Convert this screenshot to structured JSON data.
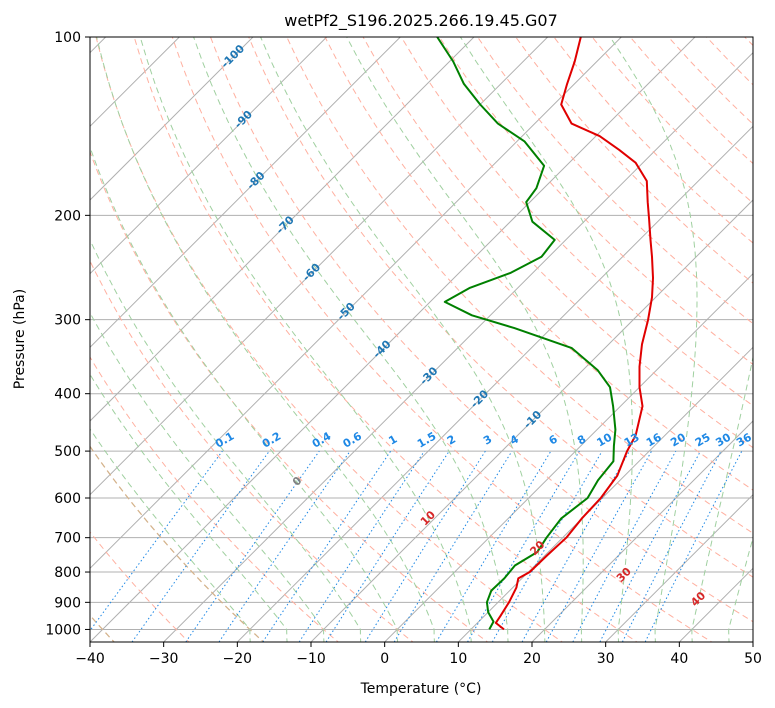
{
  "chart_data": {
    "type": "line",
    "title": "wetPf2_S196.2025.266.19.45.G07",
    "xlabel": "Temperature (°C)",
    "ylabel": "Pressure (hPa)",
    "xlim": [
      -40,
      50
    ],
    "ylim": [
      1050,
      100
    ],
    "y_scale": "log",
    "x_ticks": [
      -40,
      -30,
      -20,
      -10,
      0,
      10,
      20,
      30,
      40,
      50
    ],
    "x_tick_labels": [
      "−40",
      "−30",
      "−20",
      "−10",
      "0",
      "10",
      "20",
      "30",
      "40",
      "50"
    ],
    "y_ticks": [
      100,
      200,
      300,
      400,
      500,
      600,
      700,
      800,
      900,
      1000
    ],
    "y_tick_labels": [
      "100",
      "200",
      "300",
      "400",
      "500",
      "600",
      "700",
      "800",
      "900",
      "1000"
    ],
    "grid": true,
    "skew_deg": 45,
    "series": [
      {
        "color": "#e00000",
        "points": [
          [
            14.5,
            1000
          ],
          [
            12.5,
            975
          ],
          [
            12.2,
            950
          ],
          [
            11.5,
            900
          ],
          [
            10.5,
            850
          ],
          [
            9.5,
            820
          ],
          [
            10.2,
            800
          ],
          [
            10.3,
            750
          ],
          [
            10.5,
            700
          ],
          [
            10.0,
            650
          ],
          [
            9.8,
            600
          ],
          [
            9.0,
            550
          ],
          [
            7.0,
            500
          ],
          [
            6.0,
            470
          ],
          [
            3.0,
            420
          ],
          [
            0.0,
            390
          ],
          [
            -2.8,
            360
          ],
          [
            -5.5,
            330
          ],
          [
            -8.0,
            300
          ],
          [
            -10.5,
            275
          ],
          [
            -13.0,
            255
          ],
          [
            -16.0,
            235
          ],
          [
            -18.5,
            220
          ],
          [
            -21.5,
            203
          ],
          [
            -24.0,
            190
          ],
          [
            -27.0,
            175
          ],
          [
            -31.0,
            163
          ],
          [
            -35.0,
            155
          ],
          [
            -39.5,
            147
          ],
          [
            -45.0,
            140
          ],
          [
            -49.0,
            130
          ],
          [
            -51.0,
            120
          ],
          [
            -53.0,
            110
          ],
          [
            -55.5,
            100
          ]
        ]
      },
      {
        "color": "#008000",
        "points": [
          [
            12.5,
            1000
          ],
          [
            12.0,
            970
          ],
          [
            10.0,
            935
          ],
          [
            8.5,
            900
          ],
          [
            7.5,
            860
          ],
          [
            7.6,
            820
          ],
          [
            7.3,
            780
          ],
          [
            8.5,
            740
          ],
          [
            7.8,
            700
          ],
          [
            7.2,
            650
          ],
          [
            8.0,
            600
          ],
          [
            7.0,
            560
          ],
          [
            6.5,
            520
          ],
          [
            4.5,
            490
          ],
          [
            2.5,
            460
          ],
          [
            -1.0,
            420
          ],
          [
            -4.0,
            390
          ],
          [
            -8.0,
            365
          ],
          [
            -14.5,
            335
          ],
          [
            -25.0,
            310
          ],
          [
            -32.5,
            295
          ],
          [
            -38.0,
            280
          ],
          [
            -36.5,
            265
          ],
          [
            -33.0,
            250
          ],
          [
            -31.0,
            235
          ],
          [
            -31.5,
            220
          ],
          [
            -37.0,
            205
          ],
          [
            -40.5,
            190
          ],
          [
            -41.0,
            180
          ],
          [
            -43.0,
            165
          ],
          [
            -49.0,
            150
          ],
          [
            -55.0,
            140
          ],
          [
            -60.0,
            130
          ],
          [
            -65.0,
            120
          ],
          [
            -69.5,
            110
          ],
          [
            -75.0,
            100
          ]
        ]
      }
    ],
    "isotherm_labels": [
      "-100",
      "-90",
      "-80",
      "-70",
      "-60",
      "-50",
      "-40",
      "-30",
      "-20",
      "-10"
    ],
    "mixing_ratio_labels": [
      "0.1",
      "0.2",
      "0.4",
      "0.6",
      "1",
      "1.5",
      "2",
      "3",
      "4",
      "6",
      "8",
      "10",
      "13",
      "16",
      "20",
      "25",
      "30",
      "36"
    ],
    "moist_adiabat_labels": [
      "0",
      "10",
      "20",
      "30",
      "40"
    ],
    "colors": {
      "isotherm": "#b0b0b0",
      "isotherm_label": "#1f77b4",
      "dry_adiabat": "#ffb0a0",
      "moist_adiabat": "#a0d0a0",
      "mixing_ratio": "#1e88e5",
      "moist_label_warm": "#d62728",
      "moist_label_zero": "#808080",
      "boundary_adiabat": "#d2b48c"
    }
  }
}
